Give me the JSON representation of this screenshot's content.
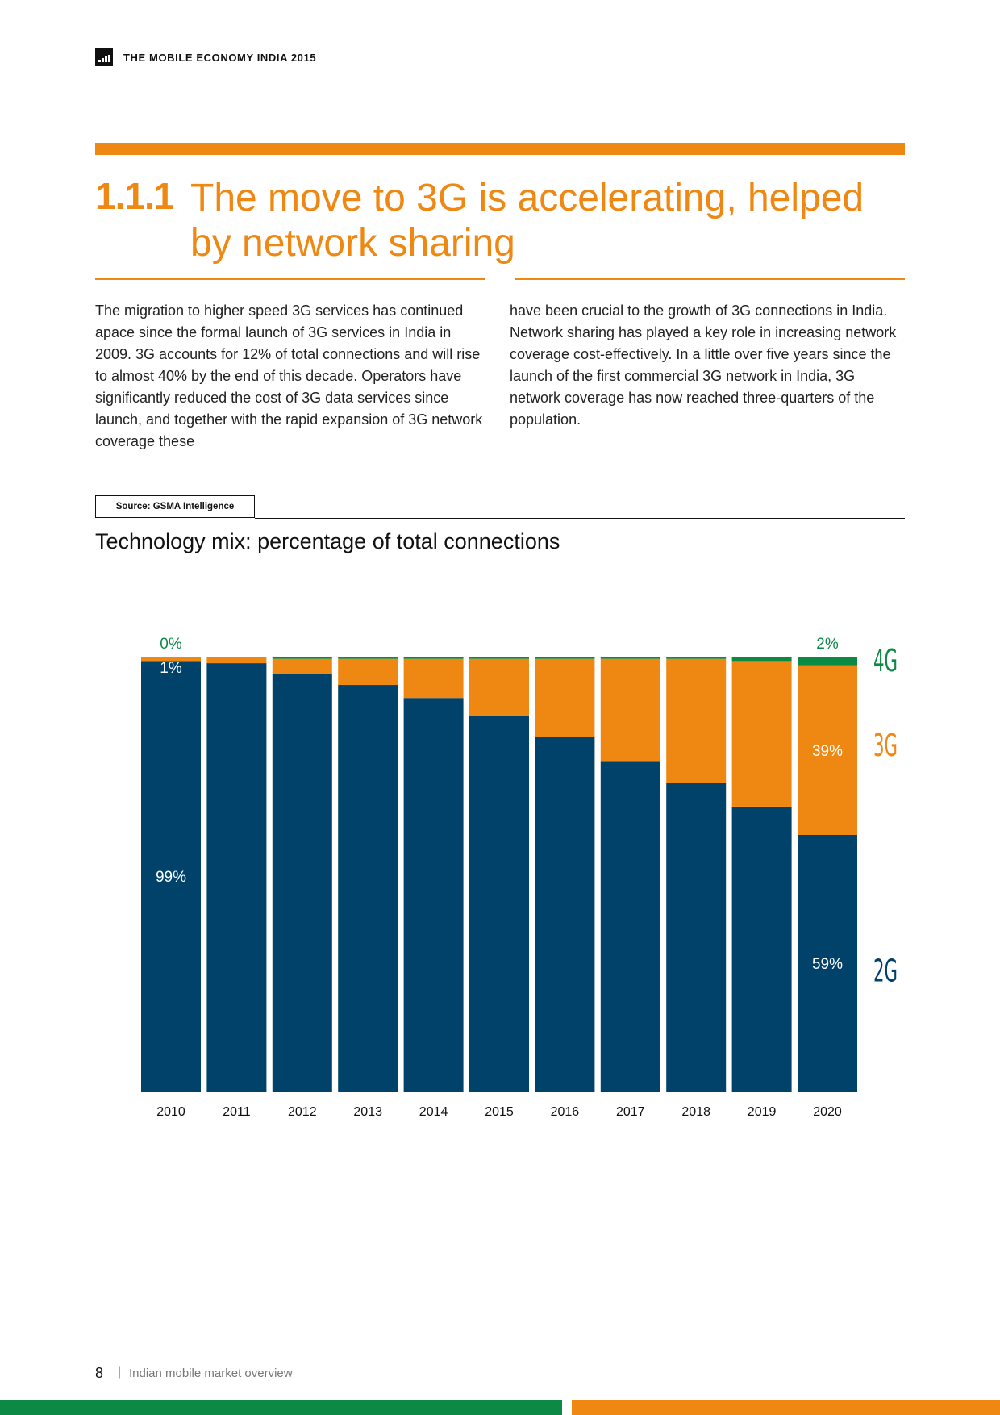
{
  "header": {
    "publication_title": "THE MOBILE ECONOMY INDIA 2015",
    "logo": "gsma-logo-icon"
  },
  "section": {
    "number": "1.1.1",
    "title": "The move to 3G is accelerating, helped by network sharing"
  },
  "body": {
    "left_column": "The migration to higher speed 3G services has continued apace since the formal launch of 3G services in India in 2009. 3G accounts for 12% of total connections and will rise to almost 40% by the end of this decade. Operators have significantly reduced the cost of 3G data services since launch, and together with the rapid expansion of 3G network coverage these",
    "right_column": "have been crucial to the growth of 3G connections in India. Network sharing has played a key role in increasing network coverage cost-effectively. In a little over five years since the launch of the first commercial 3G network in India, 3G network coverage has now reached three-quarters of the population."
  },
  "figure": {
    "source": "Source: GSMA Intelligence",
    "title": "Technology mix: percentage of total connections"
  },
  "chart_data": {
    "type": "bar",
    "stacked": true,
    "categories": [
      "2010",
      "2011",
      "2012",
      "2013",
      "2014",
      "2015",
      "2016",
      "2017",
      "2018",
      "2019",
      "2020"
    ],
    "series": [
      {
        "name": "2G",
        "color": "#00426a",
        "values": [
          99,
          98.5,
          96,
          93.5,
          90.5,
          86.5,
          81.5,
          76,
          71,
          65.5,
          59
        ]
      },
      {
        "name": "3G",
        "color": "#ee8812",
        "values": [
          1,
          1.5,
          3.5,
          6,
          9,
          13,
          18,
          23.5,
          28.5,
          33.5,
          39
        ]
      },
      {
        "name": "4G",
        "color": "#0c8a45",
        "values": [
          0,
          0,
          0.5,
          0.5,
          0.5,
          0.5,
          0.5,
          0.5,
          0.5,
          1,
          2
        ]
      }
    ],
    "ylim": [
      0,
      100
    ],
    "data_labels": [
      {
        "series": "4G",
        "category": "2010",
        "text": "0%",
        "position": "above"
      },
      {
        "series": "3G",
        "category": "2010",
        "text": "1%",
        "position": "top-inside"
      },
      {
        "series": "2G",
        "category": "2010",
        "text": "99%",
        "position": "inside"
      },
      {
        "series": "4G",
        "category": "2020",
        "text": "2%",
        "position": "above"
      },
      {
        "series": "3G",
        "category": "2020",
        "text": "39%",
        "position": "inside"
      },
      {
        "series": "2G",
        "category": "2020",
        "text": "59%",
        "position": "inside"
      }
    ],
    "legend": "right"
  },
  "footer": {
    "page_number": "8",
    "separator": "|",
    "section_name": "Indian mobile market overview"
  }
}
